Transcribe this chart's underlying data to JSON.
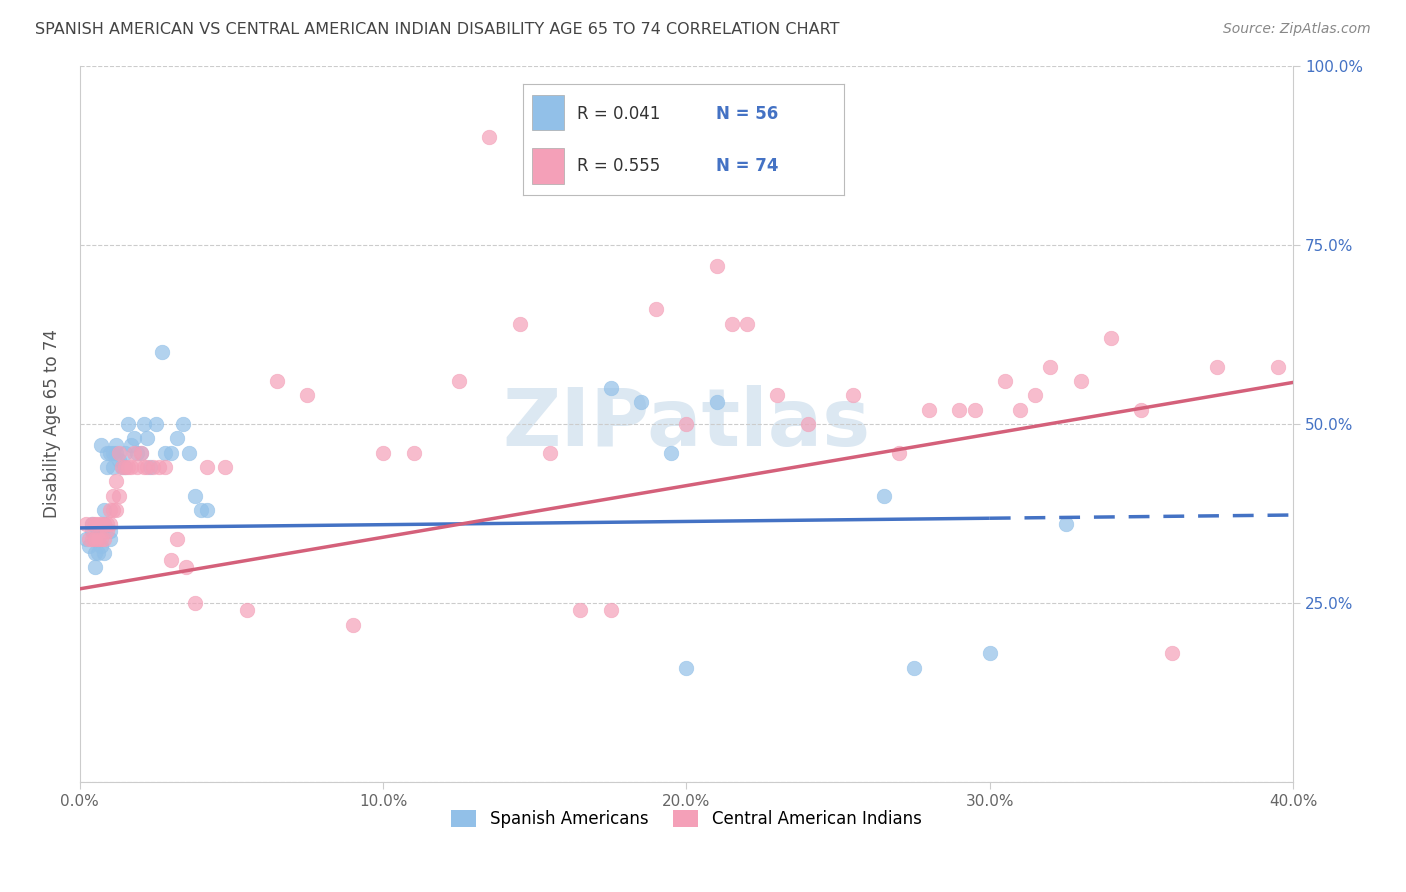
{
  "title": "SPANISH AMERICAN VS CENTRAL AMERICAN INDIAN DISABILITY AGE 65 TO 74 CORRELATION CHART",
  "source": "Source: ZipAtlas.com",
  "ylabel": "Disability Age 65 to 74",
  "xlim": [
    0.0,
    0.4
  ],
  "ylim": [
    0.0,
    1.0
  ],
  "color_blue": "#92c0e8",
  "color_pink": "#f4a0b8",
  "line_color_blue": "#4472c4",
  "line_color_pink": "#d4607a",
  "label_color_blue": "#4472c4",
  "label_color_dark": "#333333",
  "watermark_color": "#dce8f2",
  "legend_R1": "0.041",
  "legend_N1": "56",
  "legend_R2": "0.555",
  "legend_N2": "74",
  "blue_x": [
    0.002,
    0.003,
    0.004,
    0.004,
    0.005,
    0.005,
    0.005,
    0.006,
    0.006,
    0.006,
    0.007,
    0.007,
    0.007,
    0.008,
    0.008,
    0.008,
    0.009,
    0.009,
    0.01,
    0.01,
    0.01,
    0.011,
    0.011,
    0.012,
    0.012,
    0.013,
    0.014,
    0.015,
    0.015,
    0.016,
    0.017,
    0.018,
    0.019,
    0.02,
    0.021,
    0.022,
    0.023,
    0.025,
    0.027,
    0.028,
    0.03,
    0.032,
    0.034,
    0.036,
    0.038,
    0.04,
    0.042,
    0.175,
    0.185,
    0.195,
    0.2,
    0.21,
    0.265,
    0.275,
    0.3,
    0.325
  ],
  "blue_y": [
    0.34,
    0.33,
    0.35,
    0.36,
    0.3,
    0.32,
    0.34,
    0.32,
    0.34,
    0.35,
    0.33,
    0.35,
    0.47,
    0.32,
    0.36,
    0.38,
    0.44,
    0.46,
    0.34,
    0.35,
    0.46,
    0.44,
    0.46,
    0.46,
    0.47,
    0.45,
    0.44,
    0.44,
    0.46,
    0.5,
    0.47,
    0.48,
    0.46,
    0.46,
    0.5,
    0.48,
    0.44,
    0.5,
    0.6,
    0.46,
    0.46,
    0.48,
    0.5,
    0.46,
    0.4,
    0.38,
    0.38,
    0.55,
    0.53,
    0.46,
    0.16,
    0.53,
    0.4,
    0.16,
    0.18,
    0.36
  ],
  "pink_x": [
    0.002,
    0.003,
    0.004,
    0.004,
    0.005,
    0.005,
    0.006,
    0.006,
    0.007,
    0.007,
    0.008,
    0.008,
    0.009,
    0.009,
    0.01,
    0.01,
    0.011,
    0.011,
    0.012,
    0.012,
    0.013,
    0.013,
    0.014,
    0.015,
    0.016,
    0.017,
    0.018,
    0.019,
    0.02,
    0.021,
    0.022,
    0.024,
    0.026,
    0.028,
    0.03,
    0.032,
    0.035,
    0.038,
    0.042,
    0.048,
    0.055,
    0.065,
    0.075,
    0.09,
    0.1,
    0.11,
    0.125,
    0.135,
    0.145,
    0.155,
    0.165,
    0.175,
    0.19,
    0.2,
    0.21,
    0.215,
    0.22,
    0.23,
    0.24,
    0.255,
    0.27,
    0.28,
    0.29,
    0.295,
    0.305,
    0.31,
    0.315,
    0.32,
    0.33,
    0.34,
    0.35,
    0.36,
    0.375,
    0.395
  ],
  "pink_y": [
    0.36,
    0.34,
    0.34,
    0.36,
    0.34,
    0.36,
    0.34,
    0.36,
    0.34,
    0.36,
    0.34,
    0.36,
    0.35,
    0.36,
    0.36,
    0.38,
    0.38,
    0.4,
    0.38,
    0.42,
    0.4,
    0.46,
    0.44,
    0.44,
    0.44,
    0.44,
    0.46,
    0.44,
    0.46,
    0.44,
    0.44,
    0.44,
    0.44,
    0.44,
    0.31,
    0.34,
    0.3,
    0.25,
    0.44,
    0.44,
    0.24,
    0.56,
    0.54,
    0.22,
    0.46,
    0.46,
    0.56,
    0.9,
    0.64,
    0.46,
    0.24,
    0.24,
    0.66,
    0.5,
    0.72,
    0.64,
    0.64,
    0.54,
    0.5,
    0.54,
    0.46,
    0.52,
    0.52,
    0.52,
    0.56,
    0.52,
    0.54,
    0.58,
    0.56,
    0.62,
    0.52,
    0.18,
    0.58,
    0.58
  ],
  "blue_line_solid_end": 0.3,
  "blue_line_x_start": 0.0,
  "blue_line_x_end": 0.4,
  "blue_intercept": 0.355,
  "blue_slope": 0.045,
  "pink_intercept": 0.27,
  "pink_slope": 0.72
}
